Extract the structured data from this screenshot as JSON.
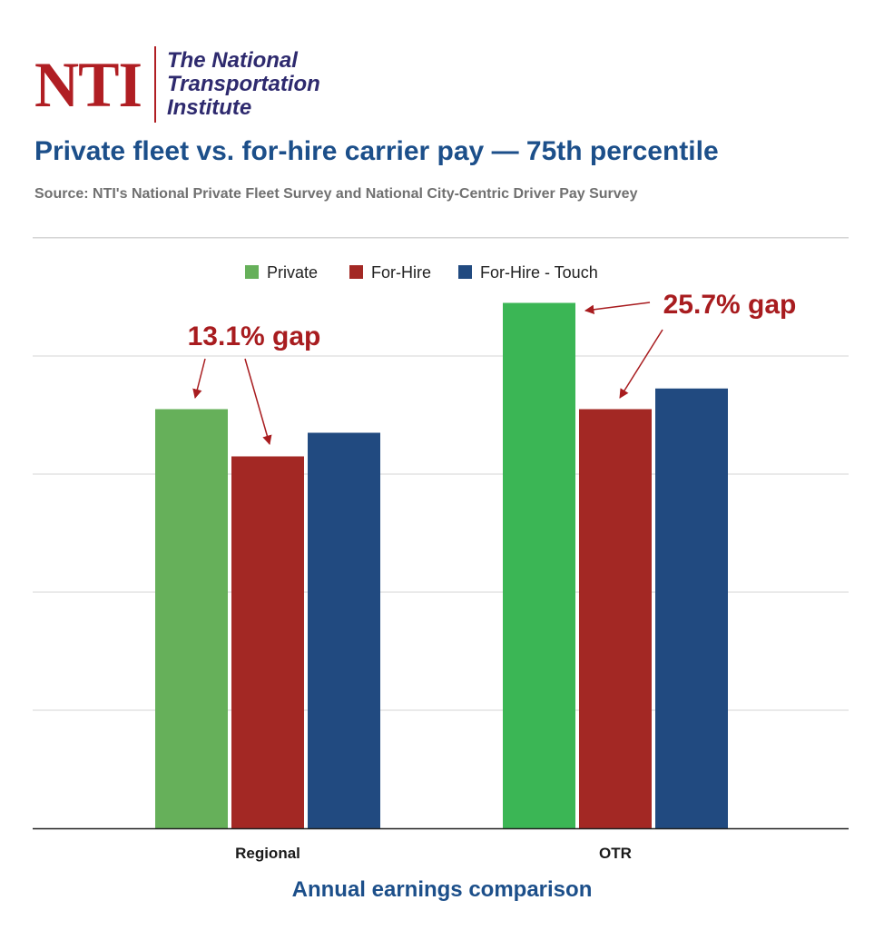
{
  "logo": {
    "mark": "NTI",
    "lines": [
      "The National",
      "Transportation",
      "Institute"
    ]
  },
  "header": {
    "title": "Private fleet vs. for-hire carrier pay — 75th percentile",
    "source": "Source: NTI's National Private Fleet Survey and National City-Centric Driver Pay Survey"
  },
  "chart_data": {
    "type": "bar",
    "categories": [
      "Regional",
      "OTR"
    ],
    "series": [
      {
        "name": "Private",
        "values": [
          71,
          89
        ],
        "colors": [
          "#66b05a",
          "#3bb655"
        ]
      },
      {
        "name": "For-Hire",
        "values": [
          63,
          71
        ],
        "colors": [
          "#a32824",
          "#a32824"
        ]
      },
      {
        "name": "For-Hire - Touch",
        "values": [
          67,
          74.5
        ],
        "colors": [
          "#214a80",
          "#214a80"
        ]
      }
    ],
    "ylim": [
      0,
      100
    ],
    "grid": true,
    "legend_position": "top-center",
    "annotations": [
      {
        "text": "13.1% gap",
        "category": "Regional"
      },
      {
        "text": "25.7% gap",
        "category": "OTR"
      }
    ],
    "xlabel": "Annual earnings comparison"
  },
  "colors": {
    "accent_red": "#b01e23",
    "title_blue": "#1c4f8a",
    "annotation_red": "#a81c1f"
  }
}
